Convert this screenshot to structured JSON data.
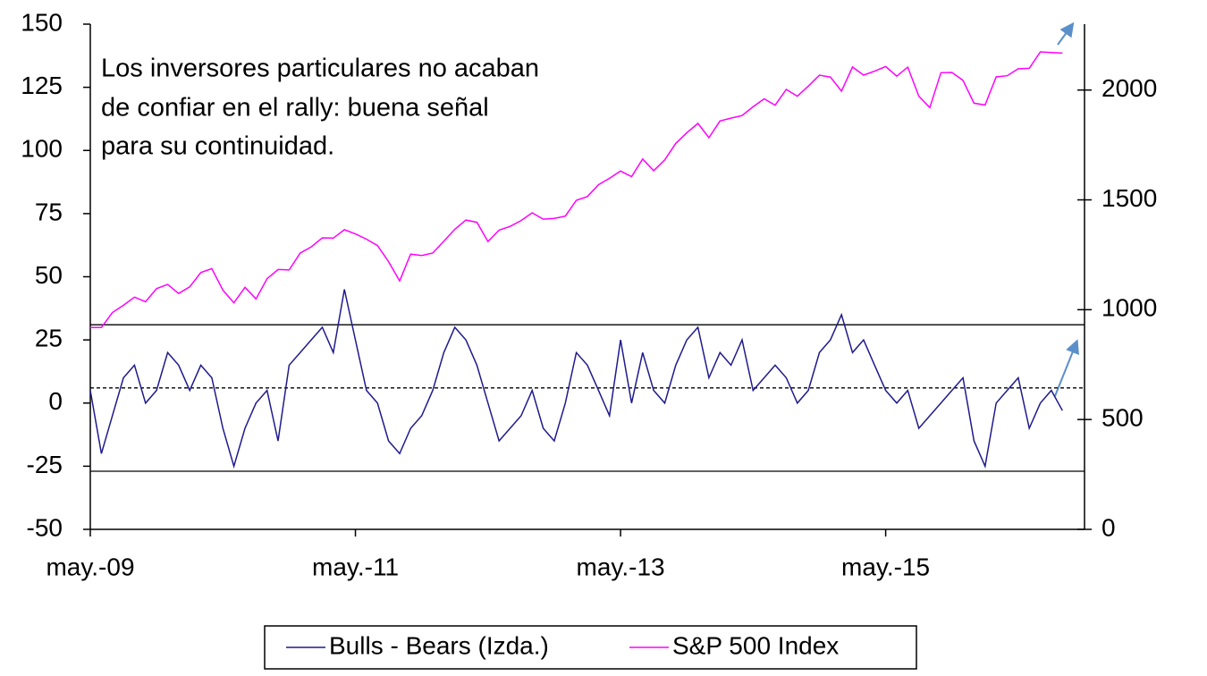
{
  "chart_data": {
    "type": "line",
    "annotation": [
      "Los inversores particulares no acaban",
      "de confiar en el rally: buena señal",
      "para su continuidad."
    ],
    "categories": [
      "may.-09",
      null,
      null,
      null,
      null,
      null,
      null,
      null,
      null,
      null,
      null,
      null,
      null,
      null,
      null,
      null,
      null,
      null,
      null,
      null,
      null,
      null,
      null,
      null,
      "may.-11",
      null,
      null,
      null,
      null,
      null,
      null,
      null,
      null,
      null,
      null,
      null,
      null,
      null,
      null,
      null,
      null,
      null,
      null,
      null,
      null,
      null,
      null,
      null,
      "may.-13",
      null,
      null,
      null,
      null,
      null,
      null,
      null,
      null,
      null,
      null,
      null,
      null,
      null,
      null,
      null,
      null,
      null,
      null,
      null,
      null,
      null,
      null,
      null,
      "may.-15",
      null,
      null,
      null,
      null,
      null,
      null,
      null,
      null,
      null,
      null,
      null,
      null,
      null,
      null,
      null,
      null,
      null,
      null
    ],
    "series": [
      {
        "name": "Bulls - Bears (Izda.)",
        "color": "#1f1a8c",
        "axis": "y",
        "values": [
          5,
          -20,
          -5,
          10,
          15,
          0,
          5,
          20,
          15,
          5,
          15,
          10,
          -10,
          -25,
          -10,
          0,
          5,
          -15,
          15,
          20,
          25,
          30,
          20,
          45,
          25,
          5,
          0,
          -15,
          -20,
          -10,
          -5,
          5,
          20,
          30,
          25,
          15,
          0,
          -15,
          -10,
          -5,
          5,
          -10,
          -15,
          0,
          20,
          15,
          5,
          -5,
          25,
          0,
          20,
          5,
          0,
          15,
          25,
          30,
          10,
          20,
          15,
          25,
          5,
          10,
          15,
          10,
          0,
          5,
          20,
          25,
          35,
          20,
          25,
          15,
          5,
          0,
          5,
          -10,
          -5,
          0,
          5,
          10,
          -15,
          -25,
          0,
          5,
          10,
          -10,
          0,
          5,
          -3,
          null,
          null
        ]
      },
      {
        "name": "S&P 500 Index",
        "color": "#ff00ff",
        "axis": "y2",
        "values": [
          919,
          919,
          987,
          1020,
          1057,
          1036,
          1096,
          1115,
          1074,
          1104,
          1169,
          1187,
          1089,
          1031,
          1102,
          1049,
          1141,
          1183,
          1181,
          1258,
          1286,
          1327,
          1326,
          1364,
          1345,
          1321,
          1292,
          1219,
          1131,
          1253,
          1247,
          1258,
          1312,
          1366,
          1408,
          1398,
          1310,
          1362,
          1379,
          1406,
          1441,
          1412,
          1416,
          1426,
          1498,
          1515,
          1569,
          1598,
          1631,
          1606,
          1686,
          1633,
          1682,
          1757,
          1806,
          1848,
          1783,
          1859,
          1872,
          1884,
          1924,
          1960,
          1931,
          2003,
          1972,
          2018,
          2068,
          2059,
          1995,
          2105,
          2068,
          2086,
          2107,
          2063,
          2104,
          1972,
          1920,
          2079,
          2080,
          2044,
          1940,
          1932,
          2060,
          2065,
          2097,
          2099,
          2174,
          2171,
          2168,
          null,
          null
        ]
      }
    ],
    "reference_lines": [
      {
        "value": 31,
        "dashed": false
      },
      {
        "value": 6,
        "dashed": true
      },
      {
        "value": -27,
        "dashed": false
      }
    ],
    "ylim": [
      -50,
      150
    ],
    "yticks": [
      -50,
      -25,
      0,
      25,
      50,
      75,
      100,
      125,
      150
    ],
    "y2lim": [
      0,
      2300
    ],
    "y2ticks": [
      0,
      500,
      1000,
      1500,
      2000
    ],
    "legend": "bottom"
  }
}
